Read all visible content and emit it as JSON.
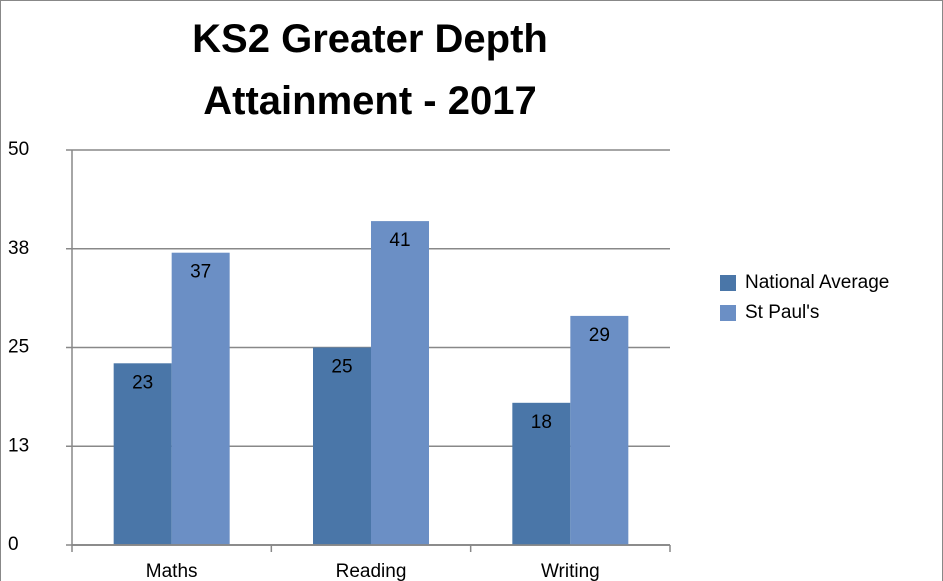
{
  "chart_data": {
    "type": "bar",
    "title": "KS2 Greater Depth Attainment - 2017",
    "categories": [
      "Maths",
      "Reading",
      "Writing"
    ],
    "series": [
      {
        "name": "National Average",
        "color": "#4a76a8",
        "values": [
          23,
          25,
          18
        ]
      },
      {
        "name": "St Paul's",
        "color": "#6b8fc5",
        "values": [
          37,
          41,
          29
        ]
      }
    ],
    "ylim": [
      0,
      50
    ],
    "yticks": [
      0,
      {
        "value": 12.5,
        "label": "13"
      },
      25,
      {
        "value": 37.5,
        "label": "38"
      },
      50
    ],
    "grid": true,
    "legend": "right"
  }
}
